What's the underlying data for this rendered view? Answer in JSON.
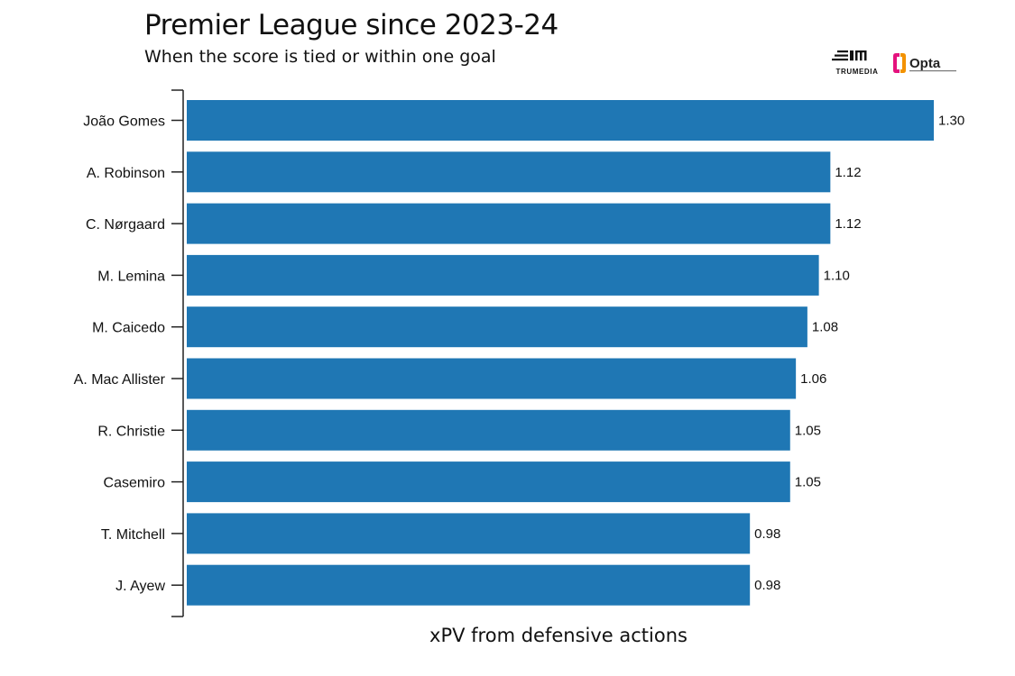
{
  "title": "Premier League since 2023-24",
  "subtitle": "When the score is tied or within one goal",
  "logos": [
    {
      "name": "trumedia",
      "text": "TRUMEDIA"
    },
    {
      "name": "opta",
      "text": "Opta"
    }
  ],
  "colors": {
    "bar": "#1f77b4",
    "text": "#111111",
    "axis": "#222222"
  },
  "chart_data": {
    "type": "bar",
    "orientation": "horizontal",
    "title": "Premier League since 2023-24",
    "subtitle": "When the score is tied or within one goal",
    "xlabel": "xPV from defensive actions",
    "ylabel": "",
    "categories": [
      "João Gomes",
      "A. Robinson",
      "C. Nørgaard",
      "M. Lemina",
      "M. Caicedo",
      "A. Mac Allister",
      "R. Christie",
      "Casemiro",
      "T. Mitchell",
      "J. Ayew"
    ],
    "values": [
      1.3,
      1.12,
      1.12,
      1.1,
      1.08,
      1.06,
      1.05,
      1.05,
      0.98,
      0.98
    ],
    "value_labels": [
      "1.30",
      "1.12",
      "1.12",
      "1.10",
      "1.08",
      "1.06",
      "1.05",
      "1.05",
      "0.98",
      "0.98"
    ],
    "xlim": [
      0,
      1.3
    ],
    "grid": false,
    "legend": false
  }
}
